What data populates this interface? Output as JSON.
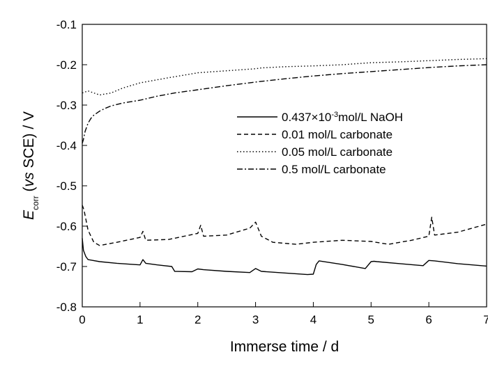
{
  "chart_data": {
    "type": "line",
    "title": "",
    "xlabel": "Immerse time / d",
    "ylabel": {
      "main": "E",
      "sub": "corr",
      "open": " (",
      "italic": "vs",
      "rest": " SCE) / V"
    },
    "xlim": [
      0,
      7
    ],
    "ylim": [
      -0.8,
      -0.1
    ],
    "x_ticks": [
      "0",
      "1",
      "2",
      "3",
      "4",
      "5",
      "6",
      "7"
    ],
    "y_ticks": [
      "-0.1",
      "-0.2",
      "-0.3",
      "-0.4",
      "-0.5",
      "-0.6",
      "-0.7",
      "-0.8"
    ],
    "grid": false,
    "legend_position": "right",
    "series": [
      {
        "name": "0.437×10⁻³mol/L NaOH",
        "legend": {
          "pre": "0.437×10",
          "sup": "-3",
          "post": "mol/L NaOH"
        },
        "style": "solid",
        "x": [
          0,
          0.02,
          0.06,
          0.1,
          0.3,
          0.6,
          1.0,
          1.05,
          1.1,
          1.3,
          1.55,
          1.6,
          1.9,
          2.0,
          2.1,
          2.5,
          2.9,
          3.0,
          3.1,
          3.5,
          3.9,
          4.0,
          4.05,
          4.1,
          4.5,
          4.9,
          5.0,
          5.05,
          5.1,
          5.5,
          5.9,
          6.0,
          6.1,
          6.5,
          7.0
        ],
        "values": [
          -0.63,
          -0.66,
          -0.675,
          -0.683,
          -0.688,
          -0.692,
          -0.696,
          -0.683,
          -0.692,
          -0.696,
          -0.7,
          -0.712,
          -0.713,
          -0.706,
          -0.708,
          -0.712,
          -0.715,
          -0.705,
          -0.712,
          -0.716,
          -0.72,
          -0.719,
          -0.695,
          -0.686,
          -0.695,
          -0.705,
          -0.688,
          -0.687,
          -0.688,
          -0.693,
          -0.698,
          -0.685,
          -0.686,
          -0.693,
          -0.699
        ]
      },
      {
        "name": "0.01 mol/L carbonate",
        "style": "dashed",
        "x": [
          0,
          0.03,
          0.1,
          0.2,
          0.3,
          0.6,
          1.0,
          1.05,
          1.1,
          1.5,
          2.0,
          2.05,
          2.1,
          2.5,
          2.9,
          3.0,
          3.1,
          3.3,
          3.7,
          4.0,
          4.5,
          5.0,
          5.3,
          5.7,
          6.0,
          6.05,
          6.1,
          6.5,
          7.0
        ],
        "values": [
          -0.548,
          -0.56,
          -0.61,
          -0.64,
          -0.648,
          -0.64,
          -0.628,
          -0.613,
          -0.635,
          -0.633,
          -0.618,
          -0.598,
          -0.625,
          -0.622,
          -0.605,
          -0.59,
          -0.625,
          -0.64,
          -0.645,
          -0.64,
          -0.635,
          -0.638,
          -0.645,
          -0.635,
          -0.625,
          -0.578,
          -0.622,
          -0.615,
          -0.595
        ]
      },
      {
        "name": "0.05 mol/L carbonate",
        "style": "dotted",
        "x": [
          0,
          0.1,
          0.2,
          0.3,
          0.5,
          0.7,
          1.0,
          1.5,
          2.0,
          2.5,
          3.0,
          3.1,
          3.5,
          4.0,
          4.5,
          5.0,
          5.5,
          6.0,
          6.5,
          7.0
        ],
        "values": [
          -0.27,
          -0.265,
          -0.27,
          -0.275,
          -0.27,
          -0.258,
          -0.245,
          -0.232,
          -0.22,
          -0.215,
          -0.21,
          -0.208,
          -0.205,
          -0.203,
          -0.2,
          -0.195,
          -0.193,
          -0.19,
          -0.187,
          -0.185
        ]
      },
      {
        "name": "0.5 mol/L carbonate",
        "style": "dashdot",
        "x": [
          0,
          0.02,
          0.05,
          0.1,
          0.15,
          0.2,
          0.3,
          0.4,
          0.5,
          0.7,
          1.0,
          1.3,
          1.6,
          2.0,
          2.5,
          3.0,
          3.5,
          4.0,
          4.5,
          5.0,
          5.5,
          6.0,
          6.5,
          7.0
        ],
        "values": [
          -0.395,
          -0.385,
          -0.365,
          -0.345,
          -0.333,
          -0.325,
          -0.315,
          -0.308,
          -0.302,
          -0.295,
          -0.288,
          -0.278,
          -0.27,
          -0.262,
          -0.252,
          -0.243,
          -0.235,
          -0.228,
          -0.222,
          -0.217,
          -0.212,
          -0.207,
          -0.203,
          -0.2
        ]
      }
    ]
  }
}
